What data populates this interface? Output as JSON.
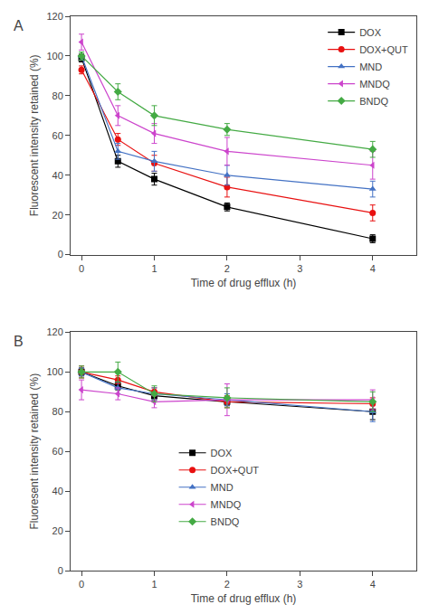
{
  "chart_data": [
    {
      "type": "line",
      "title": "A",
      "x_label": "Time of drug efflux (h)",
      "y_label": "Fluorescent intensity retained (%)",
      "x": [
        0,
        0.5,
        1,
        2,
        4
      ],
      "xlim": [
        -0.15,
        4.6
      ],
      "xticks": [
        0,
        1,
        2,
        3,
        4
      ],
      "ylim": [
        0,
        120
      ],
      "yticks": [
        0,
        20,
        40,
        60,
        80,
        100,
        120
      ],
      "grid": false,
      "legend": "upper right",
      "series": [
        {
          "name": "DOX",
          "color": "#000000",
          "marker": "square",
          "values": [
            99,
            47,
            38,
            24,
            8
          ],
          "errors": [
            2,
            3,
            3,
            2,
            2
          ]
        },
        {
          "name": "DOX+QUT",
          "color": "#e81010",
          "marker": "circle",
          "values": [
            93,
            58,
            46,
            34,
            21
          ],
          "errors": [
            2,
            3,
            4,
            5,
            4
          ]
        },
        {
          "name": "MND",
          "color": "#4472c4",
          "marker": "triangle-up",
          "values": [
            100,
            52,
            47,
            40,
            33
          ],
          "errors": [
            2,
            4,
            5,
            5,
            4
          ]
        },
        {
          "name": "MNDQ",
          "color": "#cc44cc",
          "marker": "triangle-left",
          "values": [
            107,
            70,
            61,
            52,
            45
          ],
          "errors": [
            4,
            5,
            5,
            7,
            7
          ]
        },
        {
          "name": "BNDQ",
          "color": "#44aa44",
          "marker": "diamond",
          "values": [
            100,
            82,
            70,
            63,
            53
          ],
          "errors": [
            2,
            4,
            5,
            3,
            4
          ]
        }
      ]
    },
    {
      "type": "line",
      "title": "B",
      "x_label": "Time of drug efflux (h)",
      "y_label": "Fluoresent intensity retained (%)",
      "x": [
        0,
        0.5,
        1,
        2,
        4
      ],
      "xlim": [
        -0.15,
        4.6
      ],
      "xticks": [
        0,
        1,
        2,
        3,
        4
      ],
      "ylim": [
        0,
        120
      ],
      "yticks": [
        0,
        20,
        40,
        60,
        80,
        100,
        120
      ],
      "grid": false,
      "legend": "center left",
      "series": [
        {
          "name": "DOX",
          "color": "#000000",
          "marker": "square",
          "values": [
            100,
            93,
            88,
            85,
            80
          ],
          "errors": [
            2,
            2,
            2,
            2,
            4
          ]
        },
        {
          "name": "DOX+QUT",
          "color": "#e81010",
          "marker": "circle",
          "values": [
            100,
            96,
            90,
            85,
            84
          ],
          "errors": [
            3,
            2,
            2,
            3,
            3
          ]
        },
        {
          "name": "MND",
          "color": "#4472c4",
          "marker": "triangle-up",
          "values": [
            100,
            92,
            89,
            86,
            80
          ],
          "errors": [
            2,
            3,
            3,
            3,
            5
          ]
        },
        {
          "name": "MNDQ",
          "color": "#cc44cc",
          "marker": "triangle-left",
          "values": [
            91,
            89,
            85,
            86,
            86
          ],
          "errors": [
            5,
            3,
            3,
            8,
            5
          ]
        },
        {
          "name": "BNDQ",
          "color": "#44aa44",
          "marker": "diamond",
          "values": [
            100,
            100,
            89,
            87,
            85
          ],
          "errors": [
            3,
            5,
            4,
            5,
            5
          ]
        }
      ]
    }
  ]
}
